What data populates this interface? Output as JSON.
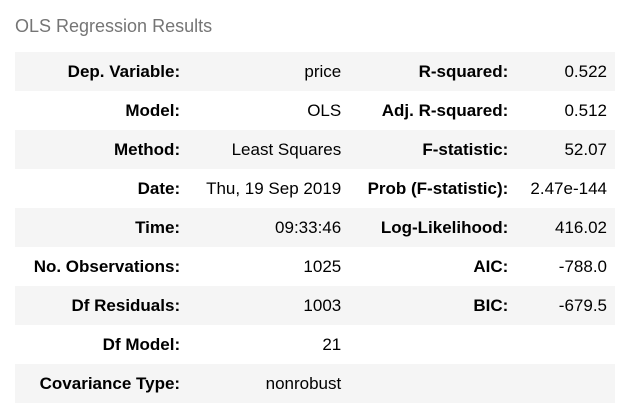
{
  "caption": "OLS Regression Results",
  "rows": [
    {
      "label1": "Dep. Variable:",
      "value1": "price",
      "label2": "R-squared:",
      "value2": "0.522"
    },
    {
      "label1": "Model:",
      "value1": "OLS",
      "label2": "Adj. R-squared:",
      "value2": "0.512"
    },
    {
      "label1": "Method:",
      "value1": "Least Squares",
      "label2": "F-statistic:",
      "value2": "52.07"
    },
    {
      "label1": "Date:",
      "value1": "Thu, 19 Sep 2019",
      "label2": "Prob (F-statistic):",
      "value2": "2.47e-144"
    },
    {
      "label1": "Time:",
      "value1": "09:33:46",
      "label2": "Log-Likelihood:",
      "value2": "416.02"
    },
    {
      "label1": "No. Observations:",
      "value1": "1025",
      "label2": "AIC:",
      "value2": "-788.0"
    },
    {
      "label1": "Df Residuals:",
      "value1": "1003",
      "label2": "BIC:",
      "value2": "-679.5"
    },
    {
      "label1": "Df Model:",
      "value1": "21",
      "label2": "",
      "value2": ""
    },
    {
      "label1": "Covariance Type:",
      "value1": "nonrobust",
      "label2": "",
      "value2": ""
    }
  ]
}
